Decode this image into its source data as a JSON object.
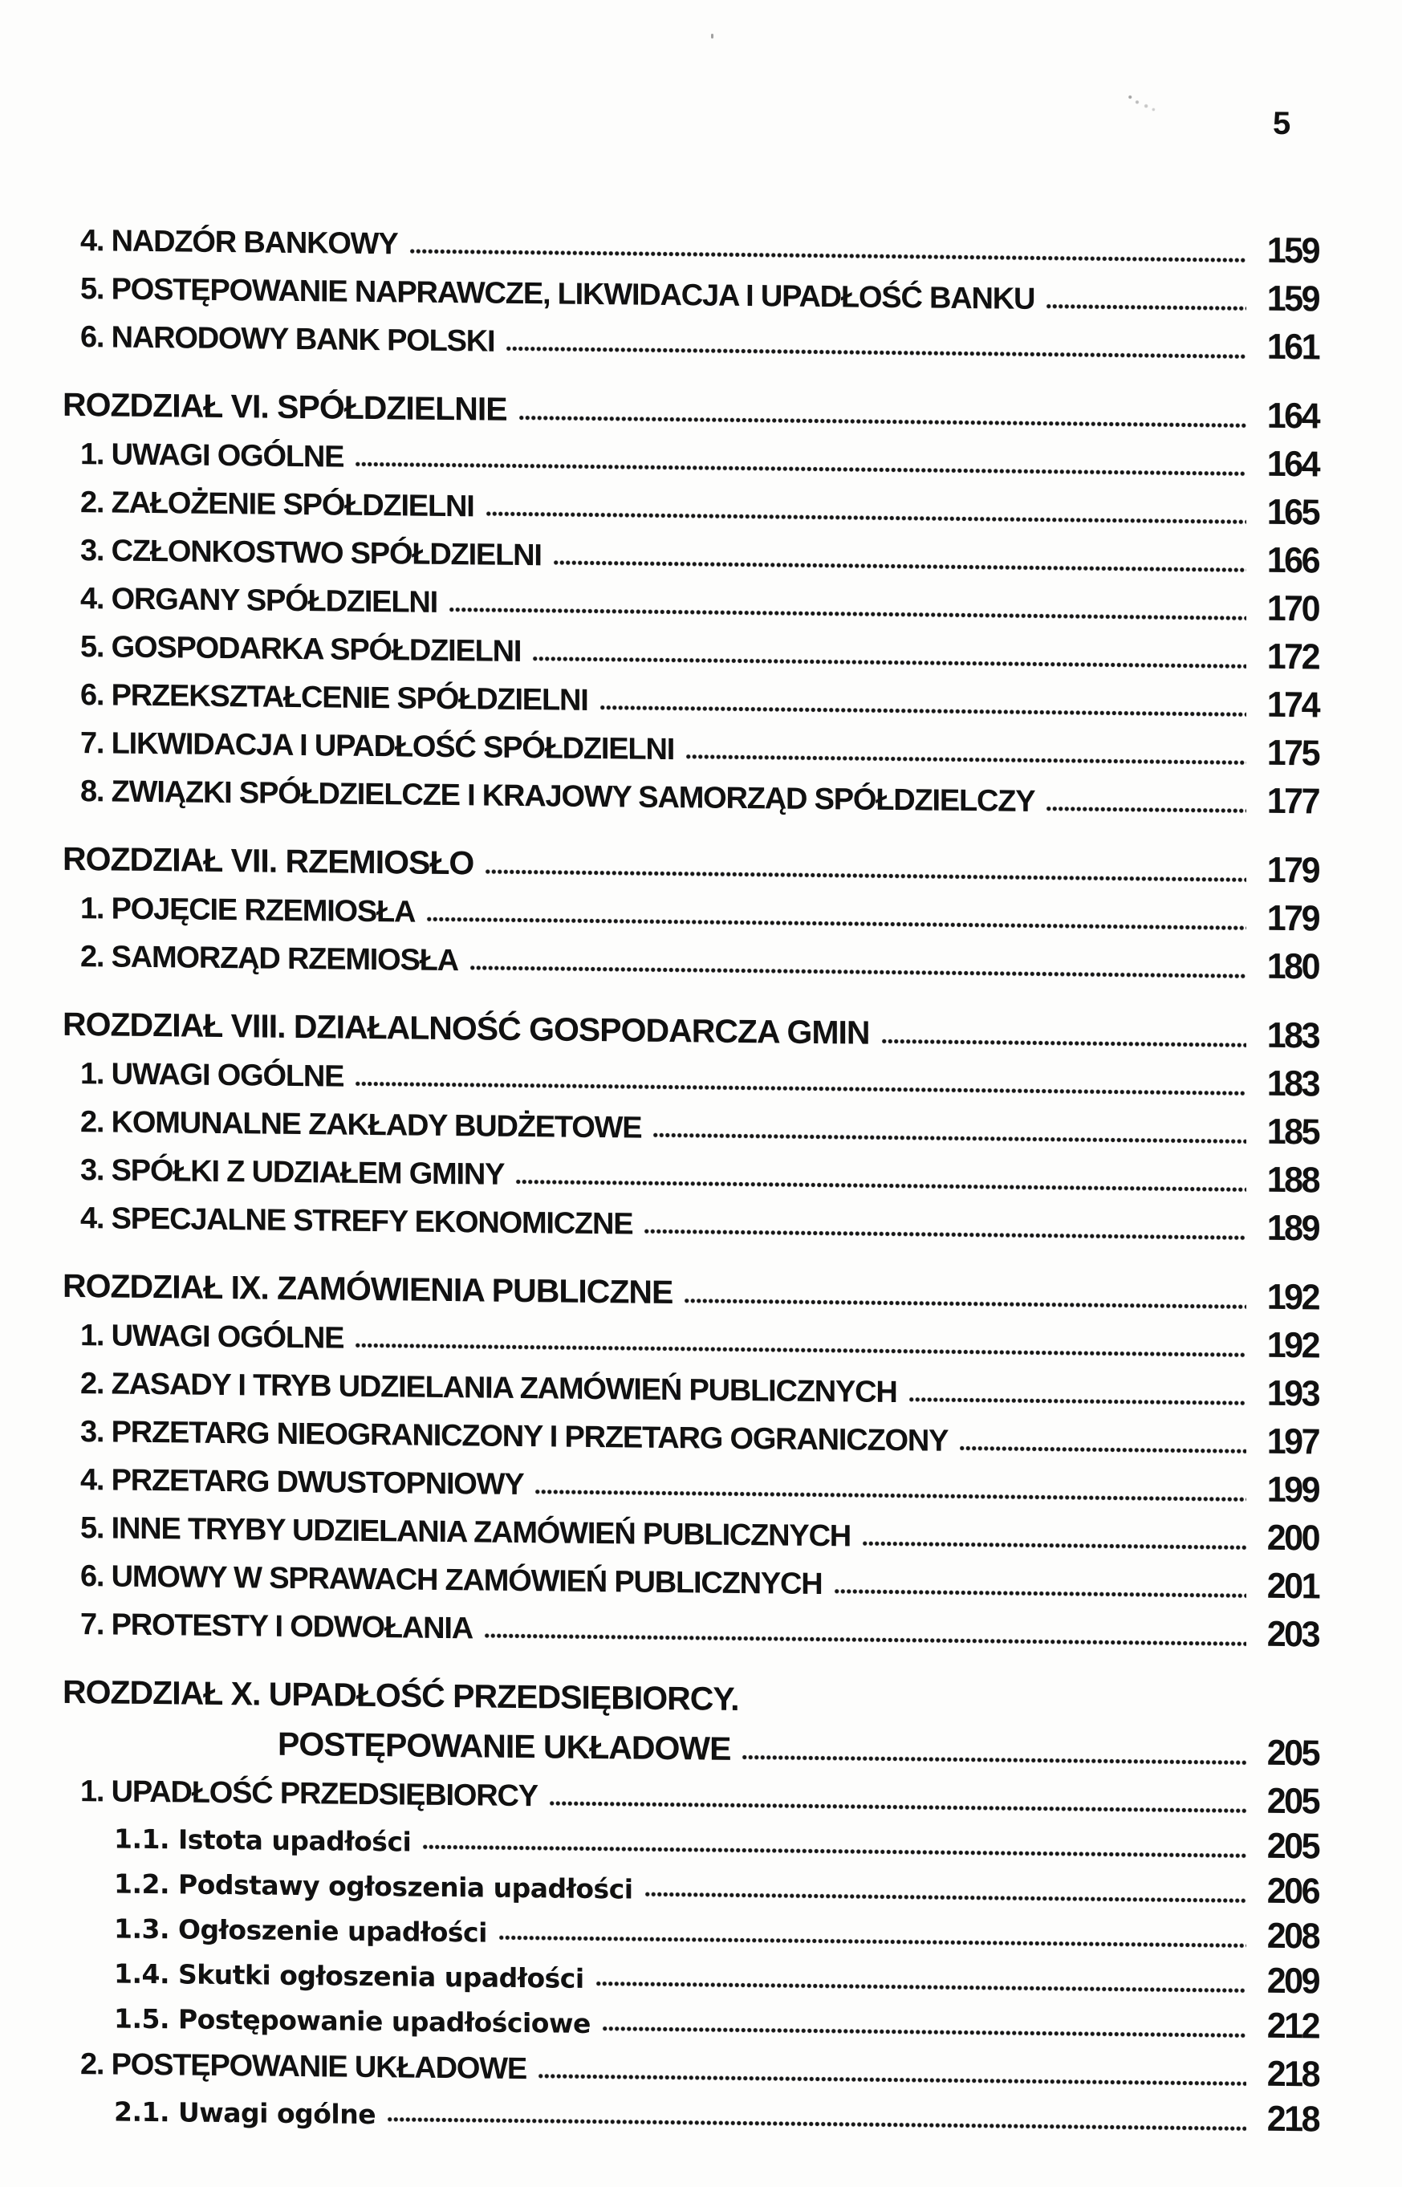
{
  "page": {
    "number": "5"
  },
  "toc": {
    "entries": [
      {
        "type": "item",
        "label": "4. NADZÓR BANKOWY",
        "page": "159"
      },
      {
        "type": "item",
        "label": "5. POSTĘPOWANIE NAPRAWCZE, LIKWIDACJA I UPADŁOŚĆ BANKU",
        "page": "159"
      },
      {
        "type": "item",
        "label": "6. NARODOWY BANK POLSKI",
        "page": "161"
      },
      {
        "type": "chapter",
        "label": "ROZDZIAŁ VI. SPÓŁDZIELNIE",
        "page": "164"
      },
      {
        "type": "item",
        "label": "1. UWAGI OGÓLNE",
        "page": "164"
      },
      {
        "type": "item",
        "label": "2. ZAŁOŻENIE SPÓŁDZIELNI",
        "page": "165"
      },
      {
        "type": "item",
        "label": "3. CZŁONKOSTWO SPÓŁDZIELNI",
        "page": "166"
      },
      {
        "type": "item",
        "label": "4. ORGANY SPÓŁDZIELNI",
        "page": "170"
      },
      {
        "type": "item",
        "label": "5. GOSPODARKA SPÓŁDZIELNI",
        "page": "172"
      },
      {
        "type": "item",
        "label": "6. PRZEKSZTAŁCENIE SPÓŁDZIELNI",
        "page": "174"
      },
      {
        "type": "item",
        "label": "7. LIKWIDACJA I UPADŁOŚĆ SPÓŁDZIELNI",
        "page": "175"
      },
      {
        "type": "item",
        "label": "8. ZWIĄZKI SPÓŁDZIELCZE I KRAJOWY SAMORZĄD SPÓŁDZIELCZY",
        "page": "177"
      },
      {
        "type": "chapter",
        "label": "ROZDZIAŁ VII. RZEMIOSŁO",
        "page": "179"
      },
      {
        "type": "item",
        "label": "1. POJĘCIE RZEMIOSŁA",
        "page": "179"
      },
      {
        "type": "item",
        "label": "2. SAMORZĄD RZEMIOSŁA",
        "page": "180"
      },
      {
        "type": "chapter",
        "label": "ROZDZIAŁ VIII. DZIAŁALNOŚĆ GOSPODARCZA GMIN",
        "page": "183"
      },
      {
        "type": "item",
        "label": "1. UWAGI OGÓLNE",
        "page": "183"
      },
      {
        "type": "item",
        "label": "2. KOMUNALNE ZAKŁADY BUDŻETOWE",
        "page": "185"
      },
      {
        "type": "item",
        "label": "3. SPÓŁKI Z UDZIAŁEM GMINY",
        "page": "188"
      },
      {
        "type": "item",
        "label": "4. SPECJALNE STREFY EKONOMICZNE",
        "page": "189"
      },
      {
        "type": "chapter",
        "label": "ROZDZIAŁ IX. ZAMÓWIENIA PUBLICZNE",
        "page": "192"
      },
      {
        "type": "item",
        "label": "1. UWAGI OGÓLNE",
        "page": "192"
      },
      {
        "type": "item",
        "label": "2. ZASADY I TRYB UDZIELANIA ZAMÓWIEŃ PUBLICZNYCH",
        "page": "193"
      },
      {
        "type": "item",
        "label": "3. PRZETARG NIEOGRANICZONY I PRZETARG OGRANICZONY",
        "page": "197"
      },
      {
        "type": "item",
        "label": "4. PRZETARG DWUSTOPNIOWY",
        "page": "199"
      },
      {
        "type": "item",
        "label": "5. INNE TRYBY UDZIELANIA ZAMÓWIEŃ PUBLICZNYCH",
        "page": "200"
      },
      {
        "type": "item",
        "label": "6. UMOWY W SPRAWACH ZAMÓWIEŃ PUBLICZNYCH",
        "page": "201"
      },
      {
        "type": "item",
        "label": "7. PROTESTY I ODWOŁANIA",
        "page": "203"
      },
      {
        "type": "chapter-first",
        "label": "ROZDZIAŁ X. UPADŁOŚĆ PRZEDSIĘBIORCY.",
        "page": ""
      },
      {
        "type": "chapter-cont",
        "label": "POSTĘPOWANIE UKŁADOWE",
        "page": "205"
      },
      {
        "type": "item",
        "label": "1. UPADŁOŚĆ PRZEDSIĘBIORCY",
        "page": "205"
      },
      {
        "type": "sub",
        "label": "1.1. Istota upadłości",
        "page": "205"
      },
      {
        "type": "sub",
        "label": "1.2. Podstawy ogłoszenia upadłości",
        "page": "206"
      },
      {
        "type": "sub",
        "label": "1.3. Ogłoszenie upadłości",
        "page": "208"
      },
      {
        "type": "sub",
        "label": "1.4. Skutki ogłoszenia upadłości",
        "page": "209"
      },
      {
        "type": "sub",
        "label": "1.5. Postępowanie upadłościowe",
        "page": "212"
      },
      {
        "type": "item",
        "label": "2. POSTĘPOWANIE UKŁADOWE",
        "page": "218"
      },
      {
        "type": "sub",
        "label": "2.1. Uwagi ogólne",
        "page": "218"
      }
    ]
  }
}
